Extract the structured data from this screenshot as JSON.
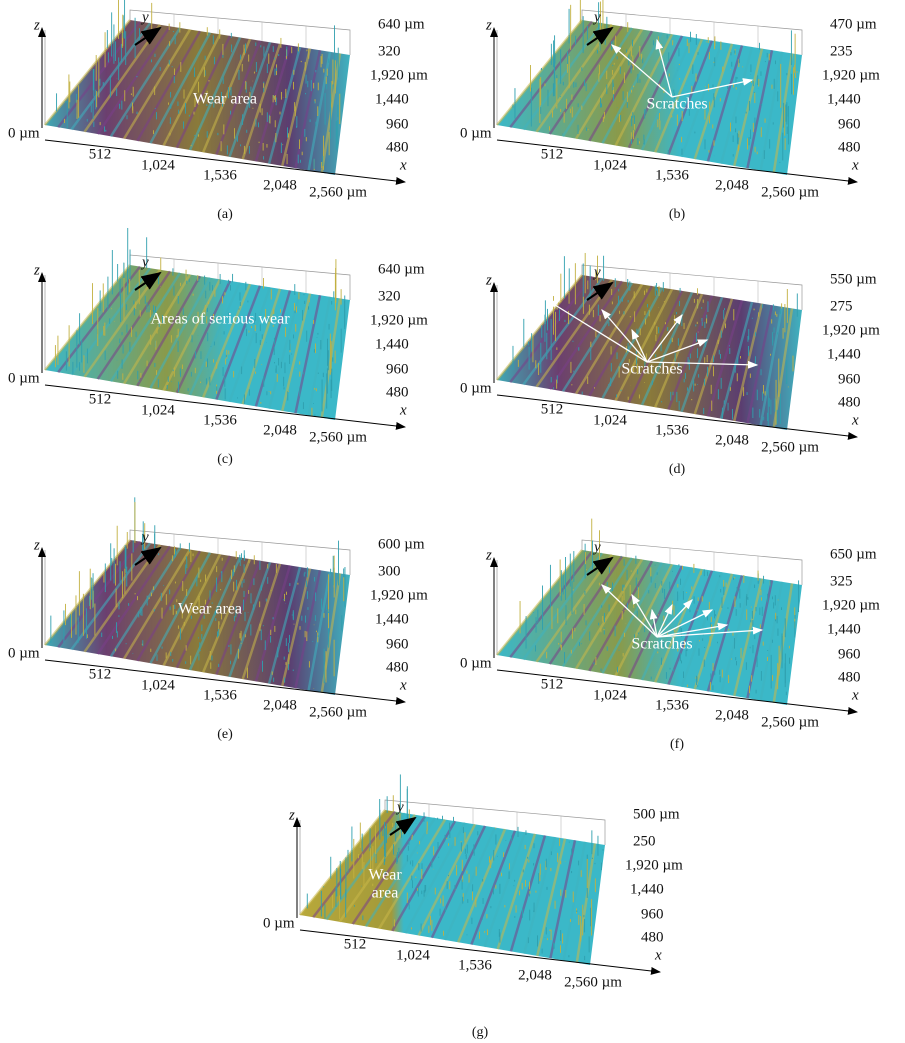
{
  "panels": [
    {
      "label": "(a)",
      "z_axis": "z",
      "y_axis": "y",
      "x_axis": "x",
      "z_ticks": [
        "640 µm",
        "320"
      ],
      "y_ticks": [
        "1,920 µm",
        "1,440",
        "960",
        "480"
      ],
      "origin_label": "0 µm",
      "x_ticks": [
        "512",
        "1,024",
        "1,536",
        "2,048",
        "2,560 µm"
      ],
      "annotation": [
        "Wear area"
      ]
    },
    {
      "label": "(b)",
      "z_axis": "z",
      "y_axis": "y",
      "x_axis": "x",
      "z_ticks": [
        "470 µm",
        "235"
      ],
      "y_ticks": [
        "1,920 µm",
        "1,440",
        "960",
        "480"
      ],
      "origin_label": "0 µm",
      "x_ticks": [
        "512",
        "1,024",
        "1,536",
        "2,048",
        "2,560 µm"
      ],
      "annotation": [
        "Scratches"
      ]
    },
    {
      "label": "(c)",
      "z_axis": "z",
      "y_axis": "y",
      "x_axis": "x",
      "z_ticks": [
        "640 µm",
        "320"
      ],
      "y_ticks": [
        "1,920 µm",
        "1,440",
        "960",
        "480"
      ],
      "origin_label": "0 µm",
      "x_ticks": [
        "512",
        "1,024",
        "1,536",
        "2,048",
        "2,560 µm"
      ],
      "annotation": [
        "Areas of serious wear"
      ]
    },
    {
      "label": "(d)",
      "z_axis": "z",
      "y_axis": "y",
      "x_axis": "x",
      "z_ticks": [
        "550 µm",
        "275"
      ],
      "y_ticks": [
        "1,920 µm",
        "1,440",
        "960",
        "480"
      ],
      "origin_label": "0 µm",
      "x_ticks": [
        "512",
        "1,024",
        "1,536",
        "2,048",
        "2,560 µm"
      ],
      "annotation": [
        "Scratches"
      ]
    },
    {
      "label": "(e)",
      "z_axis": "z",
      "y_axis": "y",
      "x_axis": "x",
      "z_ticks": [
        "600 µm",
        "300"
      ],
      "y_ticks": [
        "1,920 µm",
        "1,440",
        "960",
        "480"
      ],
      "origin_label": "0 µm",
      "x_ticks": [
        "512",
        "1,024",
        "1,536",
        "2,048",
        "2,560 µm"
      ],
      "annotation": [
        "Wear area"
      ]
    },
    {
      "label": "(f)",
      "z_axis": "z",
      "y_axis": "y",
      "x_axis": "x",
      "z_ticks": [
        "650 µm",
        "325"
      ],
      "y_ticks": [
        "1,920 µm",
        "1,440",
        "960",
        "480"
      ],
      "origin_label": "0 µm",
      "x_ticks": [
        "512",
        "1,024",
        "1,536",
        "2,048",
        "2,560 µm"
      ],
      "annotation": [
        "Scratches"
      ]
    },
    {
      "label": "(g)",
      "z_axis": "z",
      "y_axis": "y",
      "x_axis": "x",
      "z_ticks": [
        "500 µm",
        "250"
      ],
      "y_ticks": [
        "1,920 µm",
        "1,440",
        "960",
        "480"
      ],
      "origin_label": "0 µm",
      "x_ticks": [
        "512",
        "1,024",
        "1,536",
        "2,048",
        "2,560 µm"
      ],
      "annotation": [
        "Wear",
        "area"
      ]
    }
  ]
}
